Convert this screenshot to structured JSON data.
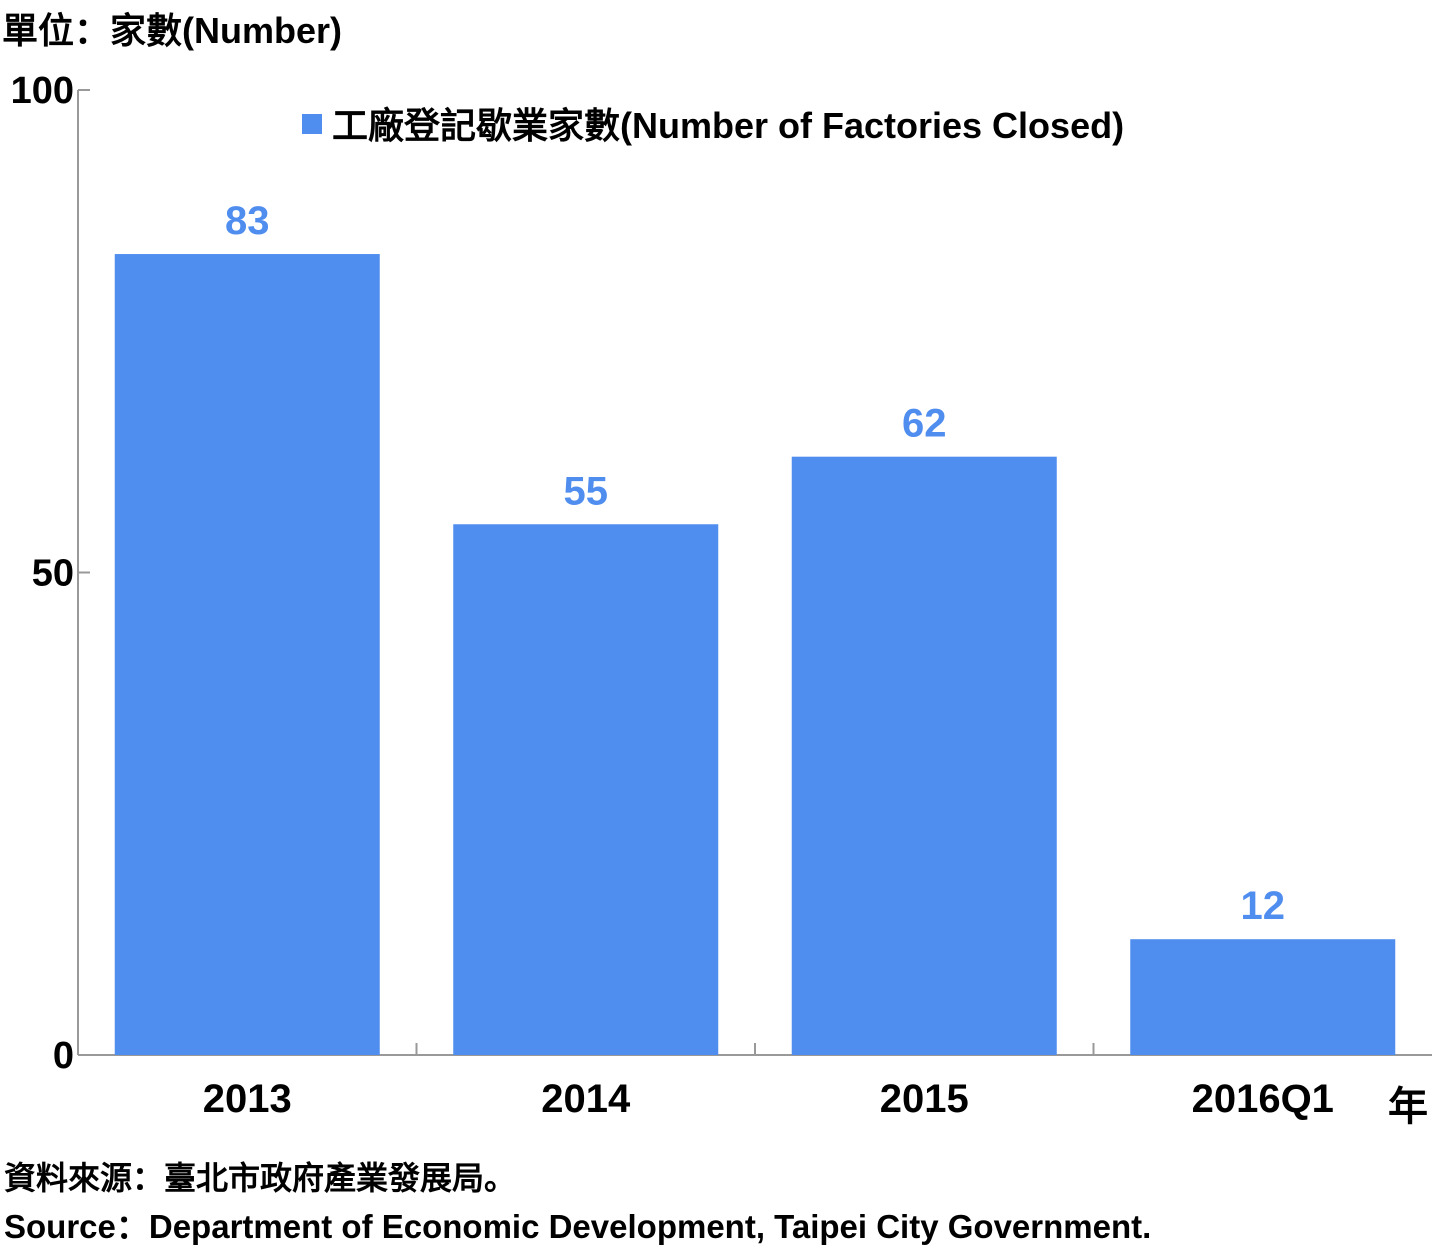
{
  "unit_label": "單位：家數(Number)",
  "year_suffix": "年",
  "source": {
    "zh": "資料來源：臺北市政府產業發展局。",
    "en": "Source：Department of Economic Development, Taipei City Government."
  },
  "colors": {
    "bar": "#4f8def",
    "data_label": "#4f8def",
    "axis": "#999999"
  },
  "chart_data": {
    "type": "bar",
    "categories": [
      "2013",
      "2014",
      "2015",
      "2016Q1"
    ],
    "series": [
      {
        "name": "工廠登記歇業家數(Number of Factories Closed)",
        "values": [
          83,
          55,
          62,
          12
        ]
      }
    ],
    "ylim": [
      0,
      100
    ],
    "yticks": [
      0,
      50,
      100
    ],
    "legend": "top",
    "grid": false
  }
}
